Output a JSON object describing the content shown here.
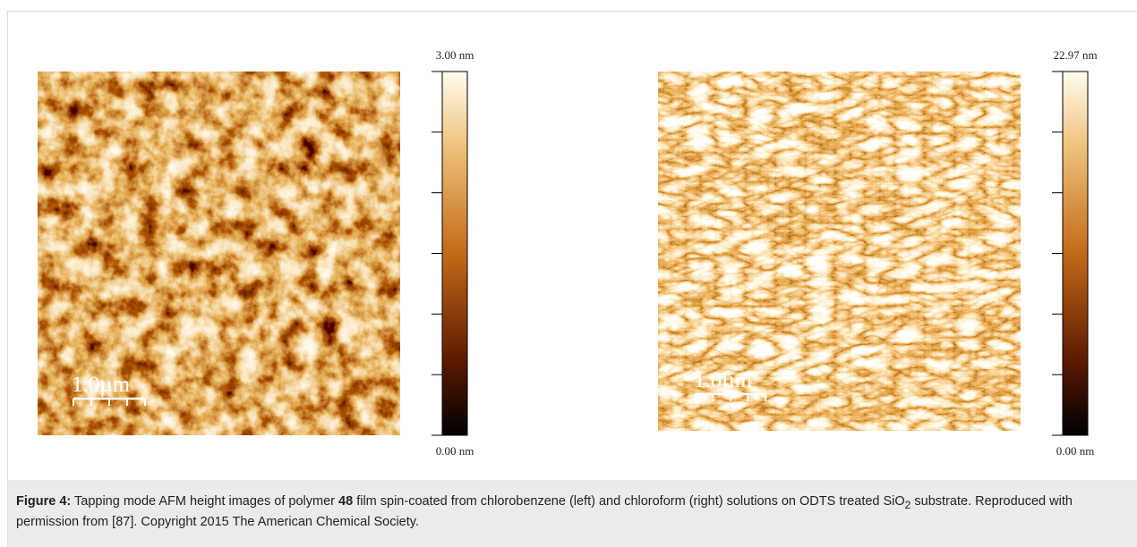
{
  "figure": {
    "panels": [
      {
        "colorbar": {
          "max_label": "3.00 nm",
          "min_label": "0.00 nm"
        },
        "scale_bar": "1.0µm"
      },
      {
        "colorbar": {
          "max_label": "22.97 nm",
          "min_label": "0.00 nm"
        },
        "scale_bar": "1.0µm"
      }
    ],
    "caption": {
      "label": "Figure 4:",
      "text_1": "Tapping mode AFM height images of polymer",
      "compound": "48",
      "text_2": "film spin-coated from chlorobenzene (left) and chloroform (right) solutions on ODTS treated SiO",
      "subscript": "2",
      "text_3": "substrate. Reproduced with permission from [87]. Copyright 2015 The American Chemical Society."
    }
  }
}
